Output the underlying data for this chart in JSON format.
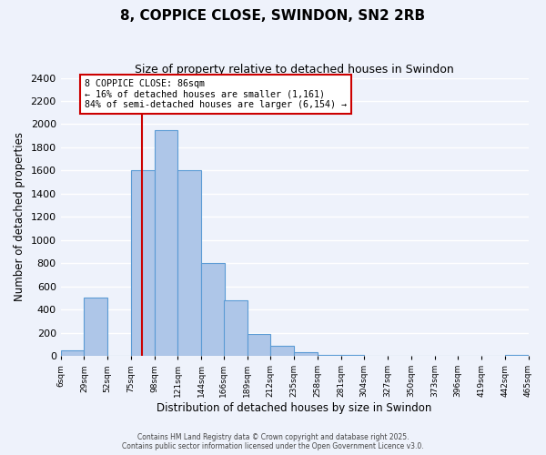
{
  "title": "8, COPPICE CLOSE, SWINDON, SN2 2RB",
  "subtitle": "Size of property relative to detached houses in Swindon",
  "xlabel": "Distribution of detached houses by size in Swindon",
  "ylabel": "Number of detached properties",
  "bar_left_edges": [
    6,
    29,
    52,
    75,
    98,
    121,
    144,
    166,
    189,
    212,
    235,
    258,
    281,
    304,
    327,
    350,
    373,
    396,
    419,
    442
  ],
  "bar_heights": [
    50,
    500,
    0,
    1600,
    1950,
    1600,
    800,
    480,
    190,
    90,
    30,
    10,
    5,
    0,
    0,
    0,
    0,
    0,
    0,
    10
  ],
  "bin_width": 23,
  "bar_color": "#aec6e8",
  "bar_edge_color": "#5b9bd5",
  "tick_labels": [
    "6sqm",
    "29sqm",
    "52sqm",
    "75sqm",
    "98sqm",
    "121sqm",
    "144sqm",
    "166sqm",
    "189sqm",
    "212sqm",
    "235sqm",
    "258sqm",
    "281sqm",
    "304sqm",
    "327sqm",
    "350sqm",
    "373sqm",
    "396sqm",
    "419sqm",
    "442sqm",
    "465sqm"
  ],
  "ylim": [
    0,
    2400
  ],
  "yticks": [
    0,
    200,
    400,
    600,
    800,
    1000,
    1200,
    1400,
    1600,
    1800,
    2000,
    2200,
    2400
  ],
  "vline_x": 86,
  "vline_color": "#cc0000",
  "annotation_title": "8 COPPICE CLOSE: 86sqm",
  "annotation_line1": "← 16% of detached houses are smaller (1,161)",
  "annotation_line2": "84% of semi-detached houses are larger (6,154) →",
  "annotation_box_color": "#ffffff",
  "annotation_box_edge": "#cc0000",
  "bg_color": "#eef2fb",
  "grid_color": "#ffffff",
  "footer1": "Contains HM Land Registry data © Crown copyright and database right 2025.",
  "footer2": "Contains public sector information licensed under the Open Government Licence v3.0."
}
